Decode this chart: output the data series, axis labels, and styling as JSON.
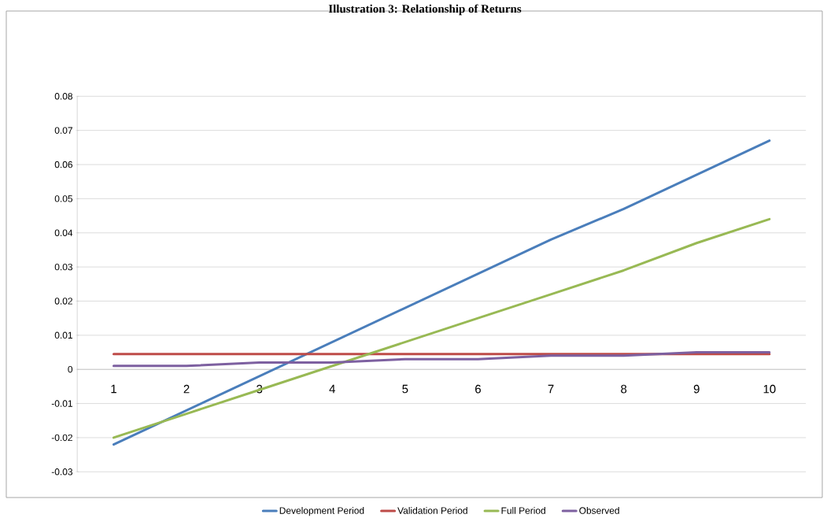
{
  "chart_data": {
    "type": "line",
    "title": "Illustration 3: Relationship of Returns",
    "categories": [
      "1",
      "2",
      "3",
      "4",
      "5",
      "6",
      "7",
      "8",
      "9",
      "10"
    ],
    "series": [
      {
        "name": "Development Period",
        "color": "#4a7ebb",
        "values": [
          -0.022,
          -0.012,
          -0.002,
          0.008,
          0.018,
          0.028,
          0.038,
          0.047,
          0.057,
          0.067
        ]
      },
      {
        "name": "Validation Period",
        "color": "#be4b48",
        "values": [
          0.0045,
          0.0045,
          0.0045,
          0.0045,
          0.0045,
          0.0045,
          0.0045,
          0.0045,
          0.0045,
          0.0045
        ]
      },
      {
        "name": "Full Period",
        "color": "#98b954",
        "values": [
          -0.02,
          -0.013,
          -0.006,
          0.001,
          0.008,
          0.015,
          0.022,
          0.029,
          0.037,
          0.044
        ]
      },
      {
        "name": "Observed",
        "color": "#7d60a0",
        "values": [
          0.001,
          0.001,
          0.002,
          0.002,
          0.003,
          0.003,
          0.004,
          0.004,
          0.005,
          0.005
        ]
      }
    ],
    "ylim": [
      -0.03,
      0.08
    ],
    "yticks": [
      -0.03,
      -0.02,
      -0.01,
      0,
      0.01,
      0.02,
      0.03,
      0.04,
      0.05,
      0.06,
      0.07,
      0.08
    ],
    "grid": "y",
    "legend": "bottom",
    "marker": "none",
    "line_style": "solid"
  }
}
